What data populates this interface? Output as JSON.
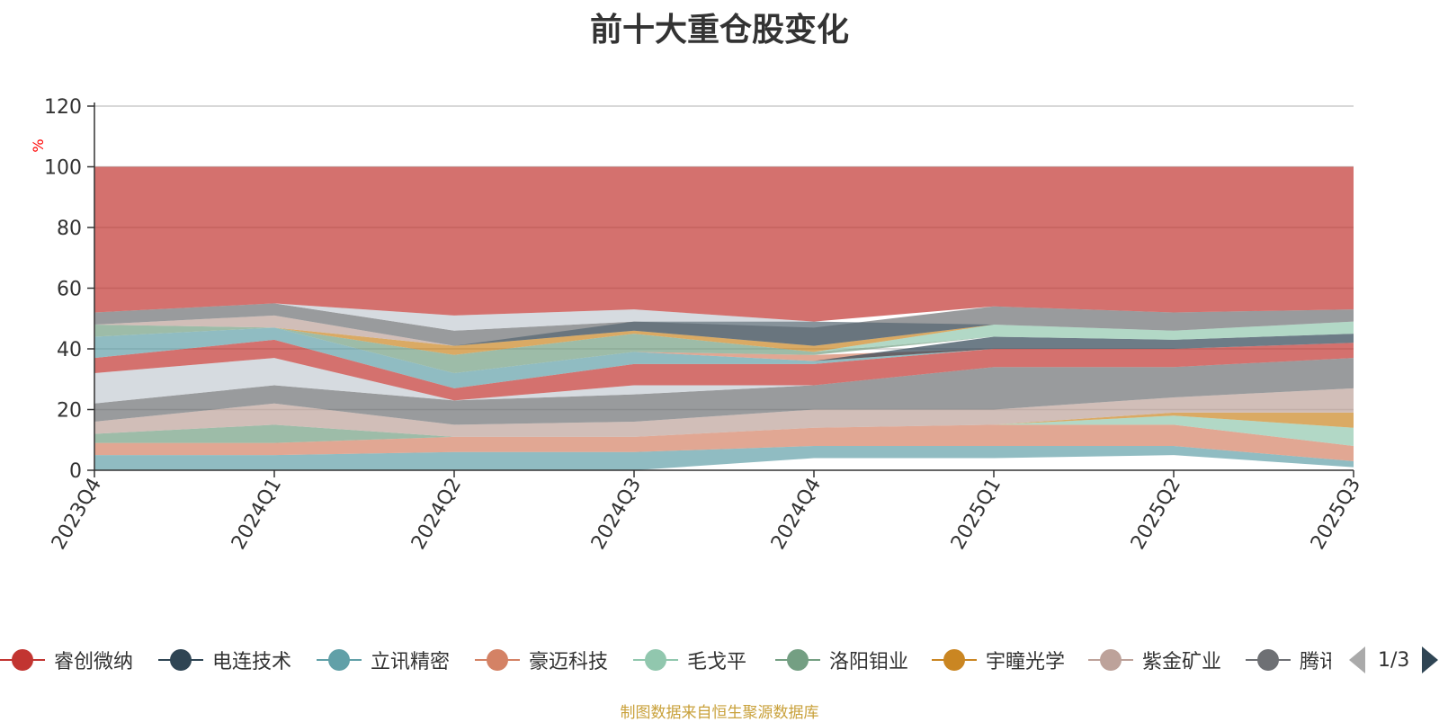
{
  "colors": {
    "series": [
      "#c23531",
      "#2f4554",
      "#61a0a8",
      "#d48265",
      "#91c7ae",
      "#749f83",
      "#ca8622",
      "#bda29a",
      "#6e7074",
      "#546570",
      "#c4ccd3"
    ],
    "axis": "#333333",
    "grid": "#cccccc",
    "unit": "#ff0000",
    "source": "#c9a13b"
  },
  "chart_data": {
    "type": "area",
    "title": "前十大重仓股变化",
    "ylabel": "%",
    "ylim": [
      0,
      120
    ],
    "yticks": [
      0,
      20,
      40,
      60,
      80,
      100,
      120
    ],
    "grid": true,
    "legend_position": "bottom",
    "categories": [
      "2023Q4",
      "2024Q1",
      "2024Q2",
      "2024Q3",
      "2024Q4",
      "2025Q1",
      "2025Q2",
      "2025Q3"
    ],
    "layers": [
      {
        "color": "#61a0a8",
        "lower": [
          0,
          0,
          0,
          0,
          4,
          4,
          5,
          1
        ],
        "upper": [
          5,
          5,
          6,
          6,
          8,
          8,
          8,
          3
        ]
      },
      {
        "color": "#d48265",
        "lower": [
          5,
          5,
          6,
          6,
          8,
          8,
          8,
          3
        ],
        "upper": [
          9,
          9,
          11,
          11,
          14,
          15,
          15,
          8
        ]
      },
      {
        "color": "#749f83",
        "lower": [
          9,
          9,
          11,
          11,
          14,
          15,
          15,
          8
        ],
        "upper": [
          12,
          15,
          11,
          11,
          14,
          15,
          15,
          8
        ]
      },
      {
        "color": "#91c7ae",
        "lower": [
          9,
          9,
          11,
          11,
          14,
          15,
          15,
          8
        ],
        "upper": [
          9,
          9,
          11,
          11,
          14,
          15,
          18,
          14
        ]
      },
      {
        "color": "#ca8622",
        "lower": [
          9,
          9,
          11,
          11,
          14,
          15,
          18,
          14
        ],
        "upper": [
          9,
          9,
          11,
          11,
          14,
          15,
          19,
          19
        ]
      },
      {
        "color": "#bda29a",
        "lower": [
          12,
          15,
          11,
          11,
          14,
          15,
          19,
          19
        ],
        "upper": [
          16,
          22,
          15,
          16,
          20,
          20,
          24,
          27
        ]
      },
      {
        "color": "#6e7074",
        "lower": [
          16,
          22,
          15,
          16,
          20,
          20,
          24,
          27
        ],
        "upper": [
          22,
          28,
          23,
          25,
          28,
          34,
          34,
          37
        ]
      },
      {
        "color": "#c4ccd3",
        "lower": [
          22,
          28,
          23,
          25,
          28,
          34,
          34,
          37
        ],
        "upper": [
          32,
          37,
          23,
          28,
          28,
          34,
          34,
          37
        ]
      },
      {
        "color": "#c23531",
        "lower": [
          32,
          37,
          23,
          28,
          28,
          34,
          34,
          37
        ],
        "upper": [
          37,
          43,
          27,
          35,
          35,
          40,
          40,
          42
        ]
      },
      {
        "color": "#61a0a8",
        "lower": [
          37,
          43,
          27,
          35,
          35,
          40,
          40,
          42
        ],
        "upper": [
          44,
          47,
          32,
          39,
          36,
          40,
          40,
          42
        ]
      },
      {
        "color": "#d48265",
        "lower": [
          44,
          47,
          32,
          39,
          36,
          40,
          40,
          42
        ],
        "upper": [
          44,
          47,
          32,
          39,
          38,
          40,
          40,
          42
        ]
      },
      {
        "color": "#2f4554",
        "lower": [
          44,
          47,
          32,
          39,
          36,
          40,
          40,
          42
        ],
        "upper": [
          44,
          47,
          32,
          39,
          36,
          44,
          43,
          45
        ]
      },
      {
        "color": "#749f83",
        "lower": [
          44,
          47,
          32,
          39,
          38,
          44,
          43,
          45
        ],
        "upper": [
          48,
          47,
          38,
          45,
          39,
          44,
          43,
          45
        ]
      },
      {
        "color": "#91c7ae",
        "lower": [
          48,
          47,
          38,
          45,
          39,
          44,
          43,
          45
        ],
        "upper": [
          48,
          47,
          38,
          45,
          39,
          48,
          46,
          49
        ]
      },
      {
        "color": "#ca8622",
        "lower": [
          48,
          47,
          38,
          45,
          39,
          48,
          46,
          49
        ],
        "upper": [
          48,
          47,
          41,
          46,
          41,
          48,
          46,
          49
        ]
      },
      {
        "color": "#bda29a",
        "lower": [
          48,
          47,
          41,
          46,
          41,
          48,
          46,
          49
        ],
        "upper": [
          48,
          51,
          41,
          46,
          41,
          48,
          46,
          49
        ]
      },
      {
        "color": "#6e7074",
        "lower": [
          48,
          51,
          41,
          46,
          41,
          48,
          46,
          49
        ],
        "upper": [
          52,
          55,
          46,
          49,
          47,
          54,
          52,
          53
        ]
      },
      {
        "color": "#546570",
        "lower": [
          48,
          51,
          41,
          46,
          41,
          48,
          46,
          49
        ],
        "upper": [
          48,
          51,
          41,
          49,
          49,
          48,
          46,
          49
        ]
      },
      {
        "color": "#c4ccd3",
        "lower": [
          52,
          55,
          46,
          49,
          49,
          54,
          52,
          53
        ],
        "upper": [
          52,
          55,
          51,
          53,
          49,
          54,
          52,
          53
        ]
      },
      {
        "color": "#c23531",
        "lower": [
          52,
          55,
          51,
          53,
          49,
          54,
          52,
          53
        ],
        "upper": [
          100,
          100,
          100,
          100,
          100,
          100,
          100,
          100
        ]
      },
      {
        "color": "#c23531",
        "lower": [
          0,
          0,
          0,
          0,
          0,
          3,
          4,
          0
        ],
        "upper": [
          0,
          0,
          0,
          0,
          0,
          3,
          4,
          0
        ]
      }
    ]
  },
  "legend": {
    "items": [
      {
        "label": "睿创微纳",
        "color": "#c23531"
      },
      {
        "label": "电连技术",
        "color": "#2f4554"
      },
      {
        "label": "立讯精密",
        "color": "#61a0a8"
      },
      {
        "label": "豪迈科技",
        "color": "#d48265"
      },
      {
        "label": "毛戈平",
        "color": "#91c7ae"
      },
      {
        "label": "洛阳钼业",
        "color": "#749f83"
      },
      {
        "label": "宇瞳光学",
        "color": "#ca8622"
      },
      {
        "label": "紫金矿业",
        "color": "#bda29a"
      },
      {
        "label": "腾讯控股",
        "color": "#6e7074"
      }
    ],
    "page": "1/3"
  },
  "source_note": "制图数据来自恒生聚源数据库"
}
